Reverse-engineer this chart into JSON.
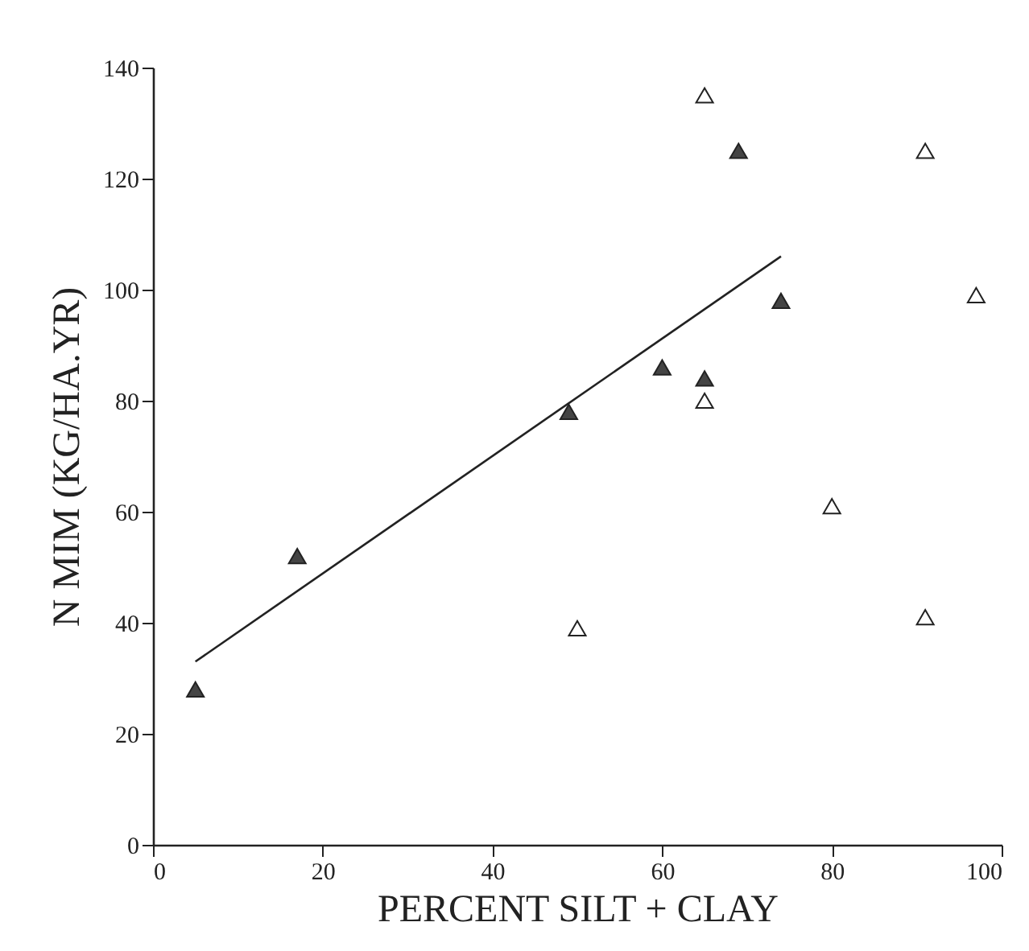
{
  "chart_data": {
    "type": "scatter",
    "xlabel": "PERCENT SILT + CLAY",
    "ylabel": "N MIM (KG/HA.YR)",
    "xlim": [
      0,
      100
    ],
    "xticks": [
      0,
      20,
      40,
      60,
      80,
      100
    ],
    "ylim": [
      0,
      140
    ],
    "yticks": [
      0,
      20,
      40,
      60,
      80,
      100,
      120,
      140
    ],
    "grid": false,
    "series": [
      {
        "marker": "triangle",
        "color": "#444444",
        "x": [
          5,
          17,
          49,
          60,
          65,
          69,
          74
        ],
        "values": [
          28,
          52,
          78,
          86,
          84,
          125,
          98
        ]
      },
      {
        "marker": "triangle",
        "color": "#ffffff",
        "x": [
          50,
          65,
          65,
          80,
          91,
          91,
          97
        ],
        "values": [
          39,
          135,
          80,
          61,
          125,
          41,
          99
        ]
      },
      {
        "type": "line",
        "color": "#222222",
        "x": [
          5,
          74
        ],
        "values": [
          33,
          106
        ]
      }
    ]
  }
}
